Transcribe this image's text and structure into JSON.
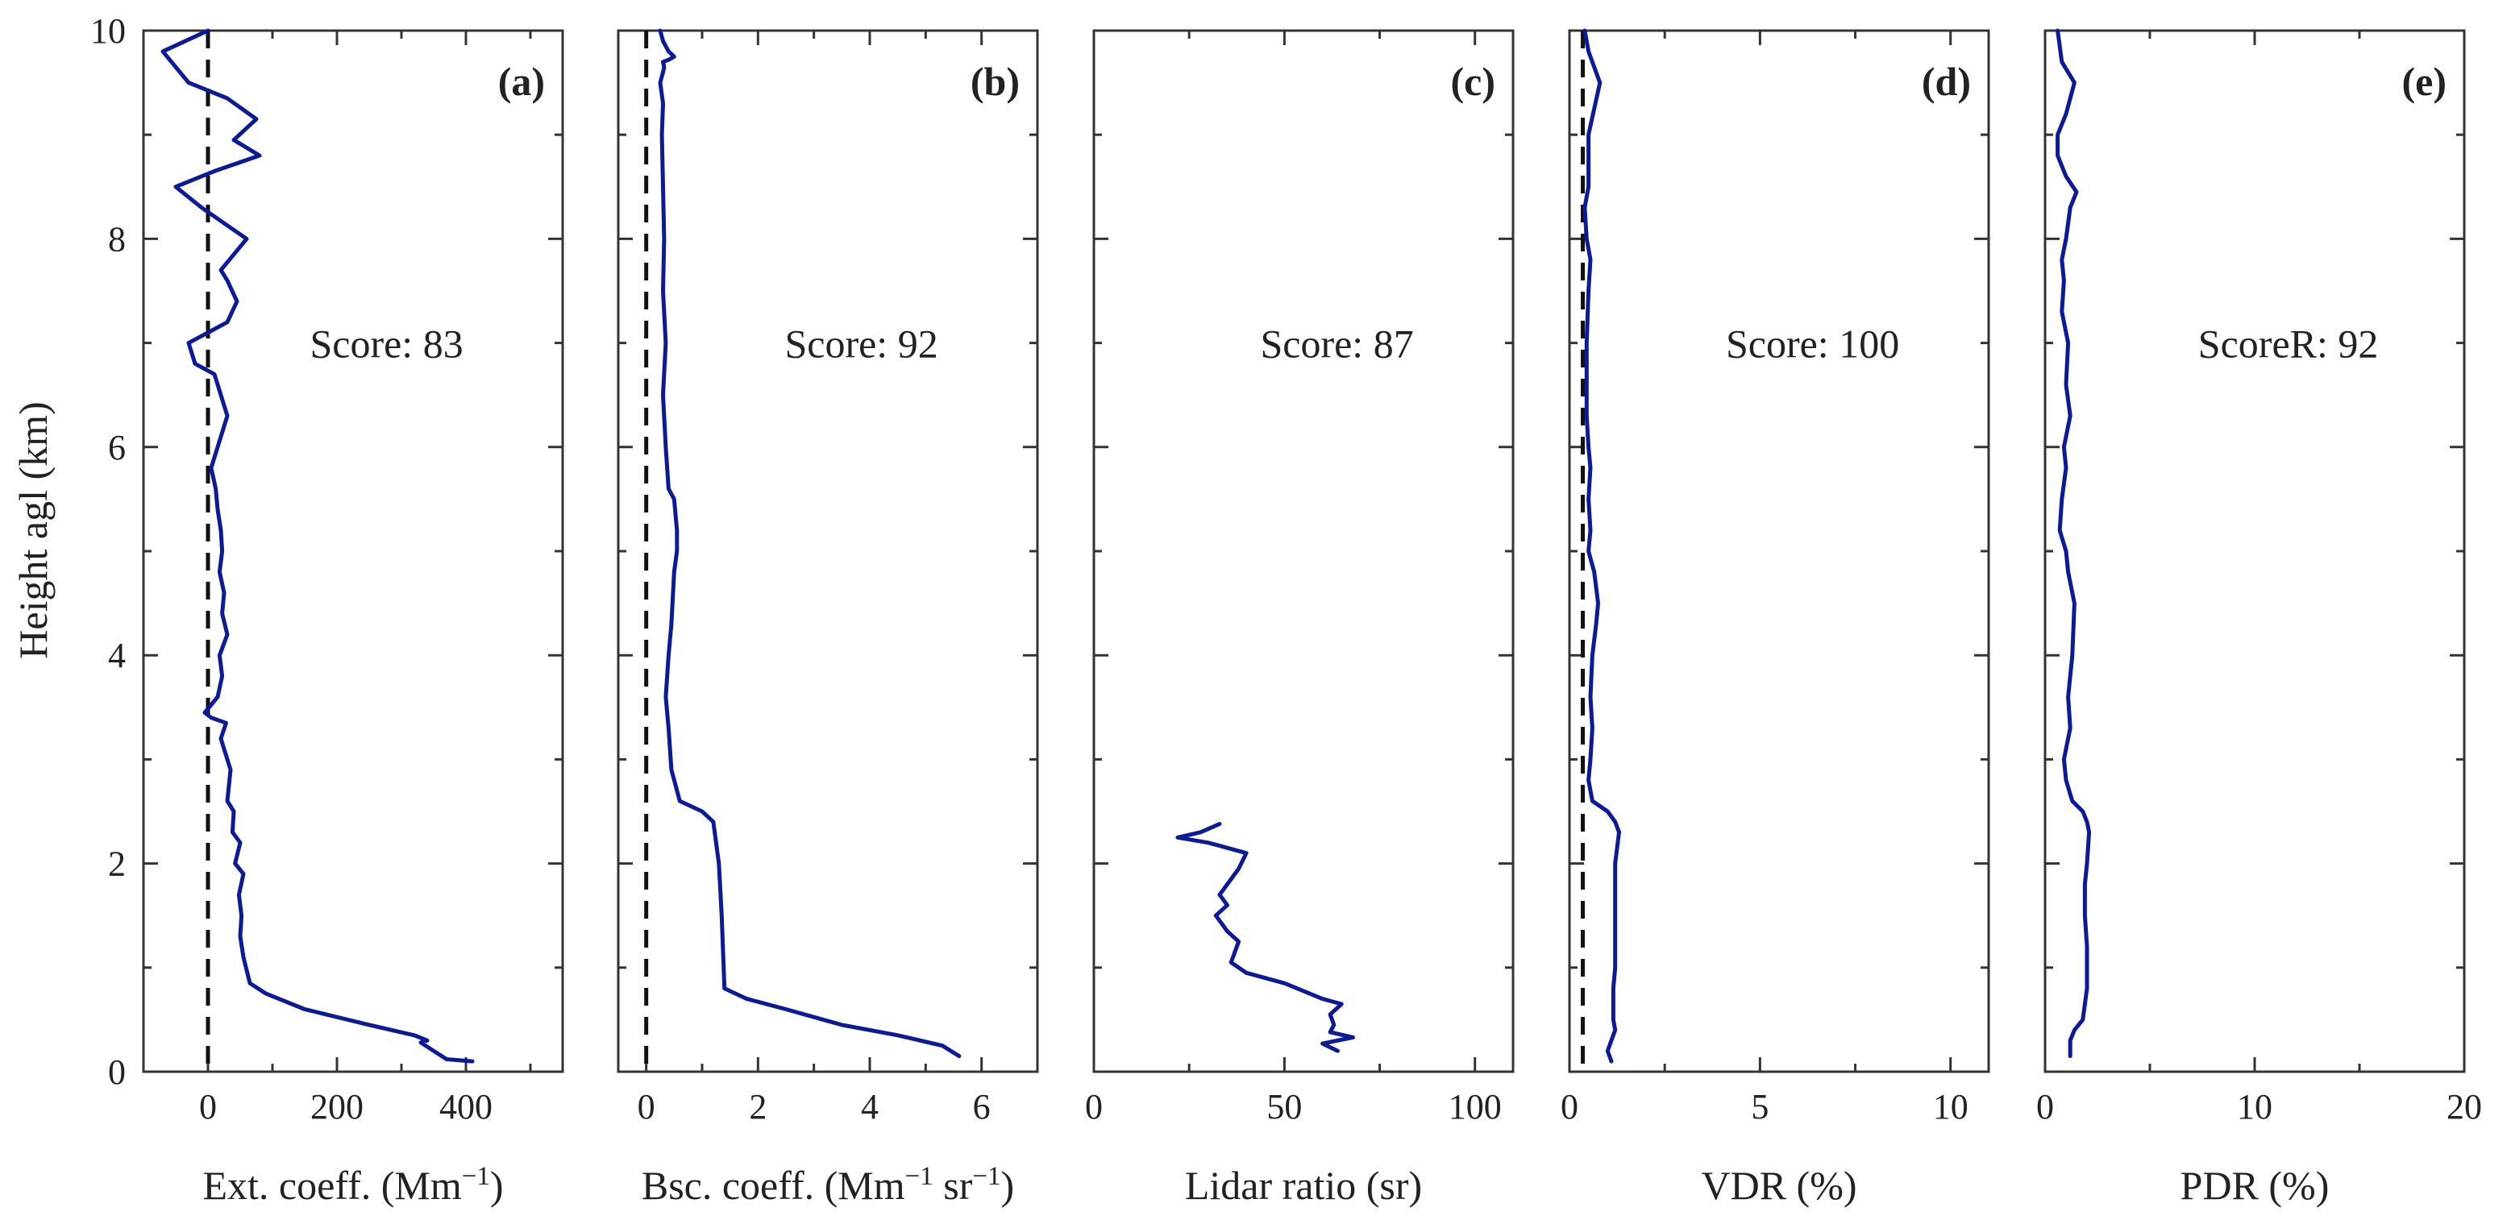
{
  "ylabel": "Height agl (km)",
  "ylim": [
    0,
    10
  ],
  "yticks": [
    0,
    2,
    4,
    6,
    8,
    10
  ],
  "colors": {
    "line": "#0d1a96",
    "reference": "#111111",
    "axes": "#333333"
  },
  "chart_data": [
    {
      "id": "a",
      "type": "line",
      "letter": "(a)",
      "score": "Score: 83",
      "xlabel": "Ext. coeff. (Mm",
      "xlabel_sup": "−1",
      "xlabel_tail": ")",
      "xlim": [
        -100,
        550
      ],
      "xticks": [
        0,
        200,
        400
      ],
      "xticklabels": [
        "0",
        "200",
        "400"
      ],
      "reference_x": 0,
      "series": [
        {
          "name": "Ext. coeff.",
          "x": [
            410,
            370,
            350,
            330,
            340,
            320,
            250,
            150,
            90,
            65,
            55,
            50,
            52,
            48,
            55,
            42,
            50,
            38,
            40,
            30,
            35,
            20,
            28,
            5,
            -5,
            15,
            22,
            18,
            30,
            22,
            25,
            18,
            22,
            20,
            15,
            12,
            5,
            15,
            30,
            20,
            10,
            -20,
            -30,
            30,
            45,
            30,
            20,
            40,
            60,
            -10,
            -50,
            10,
            80,
            40,
            75,
            30,
            -30,
            -70,
            0
          ],
          "y": [
            0.1,
            0.12,
            0.2,
            0.28,
            0.3,
            0.35,
            0.45,
            0.6,
            0.75,
            0.85,
            1.1,
            1.3,
            1.5,
            1.7,
            1.9,
            2.0,
            2.2,
            2.3,
            2.5,
            2.6,
            2.9,
            3.2,
            3.35,
            3.4,
            3.45,
            3.6,
            3.8,
            4.0,
            4.2,
            4.4,
            4.6,
            4.8,
            5.0,
            5.2,
            5.4,
            5.6,
            5.8,
            6.0,
            6.3,
            6.5,
            6.7,
            6.8,
            7.0,
            7.2,
            7.4,
            7.6,
            7.7,
            7.85,
            8.0,
            8.3,
            8.5,
            8.65,
            8.8,
            8.95,
            9.15,
            9.35,
            9.5,
            9.8,
            10.0
          ]
        }
      ]
    },
    {
      "id": "b",
      "type": "line",
      "letter": "(b)",
      "score": "Score: 92",
      "xlabel": "Bsc. coeff. (Mm",
      "xlabel_sup": "−1",
      "xlabel_mid": " sr",
      "xlabel_sup2": "−1",
      "xlabel_tail": ")",
      "xlim": [
        -0.5,
        7
      ],
      "xticks": [
        0,
        2,
        4,
        6
      ],
      "xticklabels": [
        "0",
        "2",
        "4",
        "6"
      ],
      "reference_x": 0,
      "series": [
        {
          "name": "Bsc. coeff.",
          "x": [
            5.6,
            5.3,
            4.5,
            3.5,
            2.5,
            1.8,
            1.4,
            1.35,
            1.3,
            1.2,
            1.0,
            0.6,
            0.45,
            0.4,
            0.35,
            0.4,
            0.45,
            0.5,
            0.55,
            0.55,
            0.5,
            0.4,
            0.35,
            0.3,
            0.35,
            0.3,
            0.32,
            0.3,
            0.28,
            0.3,
            0.25,
            0.3,
            0.32,
            0.3,
            0.4,
            0.5,
            0.4,
            0.3,
            0.25
          ],
          "y": [
            0.15,
            0.25,
            0.35,
            0.45,
            0.6,
            0.7,
            0.8,
            1.5,
            2.0,
            2.4,
            2.5,
            2.6,
            2.9,
            3.3,
            3.6,
            4.0,
            4.3,
            4.8,
            5.0,
            5.2,
            5.5,
            5.6,
            6.0,
            6.5,
            7.0,
            7.5,
            8.0,
            8.5,
            9.0,
            9.3,
            9.5,
            9.6,
            9.65,
            9.7,
            9.72,
            9.75,
            9.8,
            9.9,
            10.0
          ]
        }
      ]
    },
    {
      "id": "c",
      "type": "line",
      "letter": "(c)",
      "score": "Score: 87",
      "xlabel": "Lidar ratio (sr)",
      "xlim": [
        0,
        110
      ],
      "xticks": [
        0,
        50,
        100
      ],
      "xticklabels": [
        "0",
        "50",
        "100"
      ],
      "reference_x": null,
      "series": [
        {
          "name": "Lidar ratio",
          "x": [
            64,
            60,
            68,
            62,
            63,
            62,
            65,
            60,
            50,
            40,
            36,
            37,
            38,
            35,
            32,
            35,
            33,
            35,
            38,
            40,
            35,
            30,
            22,
            28,
            33
          ],
          "y": [
            0.2,
            0.27,
            0.33,
            0.38,
            0.45,
            0.55,
            0.65,
            0.7,
            0.85,
            0.95,
            1.05,
            1.15,
            1.25,
            1.35,
            1.5,
            1.6,
            1.7,
            1.8,
            1.95,
            2.1,
            2.15,
            2.2,
            2.25,
            2.3,
            2.38
          ]
        }
      ]
    },
    {
      "id": "d",
      "type": "line",
      "letter": "(d)",
      "score": "Score: 100",
      "xlabel": "VDR (%)",
      "xlim": [
        0,
        11
      ],
      "xticks": [
        0,
        5,
        10
      ],
      "xticklabels": [
        "0",
        "5",
        "10"
      ],
      "reference_x": 0.35,
      "series": [
        {
          "name": "VDR",
          "x": [
            1.1,
            1.0,
            1.1,
            1.2,
            1.15,
            1.15,
            1.2,
            1.2,
            1.2,
            1.3,
            1.2,
            1.0,
            0.6,
            0.5,
            0.55,
            0.6,
            0.55,
            0.6,
            0.7,
            0.75,
            0.65,
            0.5,
            0.55,
            0.5,
            0.55,
            0.5,
            0.45,
            0.45,
            0.45,
            0.5,
            0.55,
            0.45,
            0.4,
            0.5,
            0.5,
            0.8,
            0.5,
            0.4
          ],
          "y": [
            0.1,
            0.2,
            0.3,
            0.4,
            0.5,
            0.8,
            1.0,
            1.5,
            2.0,
            2.3,
            2.4,
            2.5,
            2.6,
            2.8,
            3.0,
            3.3,
            3.6,
            4.0,
            4.3,
            4.5,
            4.8,
            5.0,
            5.2,
            5.5,
            5.8,
            6.0,
            6.3,
            6.6,
            7.0,
            7.5,
            7.8,
            8.0,
            8.3,
            8.5,
            9.0,
            9.5,
            9.8,
            10.0
          ]
        }
      ]
    },
    {
      "id": "e",
      "type": "line",
      "letter": "(e)",
      "score": "ScoreR: 92",
      "xlabel": "PDR (%)",
      "xlim": [
        0,
        20
      ],
      "xticks": [
        0,
        10,
        20
      ],
      "xticklabels": [
        "0",
        "10",
        "20"
      ],
      "reference_x": null,
      "series": [
        {
          "name": "PDR",
          "x": [
            1.2,
            1.2,
            1.4,
            1.8,
            2.0,
            2.0,
            1.9,
            1.9,
            2.0,
            2.1,
            2.0,
            1.8,
            1.3,
            1.0,
            0.9,
            1.2,
            1.1,
            1.3,
            1.4,
            1.1,
            1.0,
            0.7,
            0.8,
            1.0,
            0.9,
            1.2,
            1.0,
            1.1,
            0.8,
            0.9,
            0.8,
            1.0,
            1.2,
            1.5,
            1.0,
            0.6,
            0.6,
            1.0,
            1.4,
            0.8,
            0.6
          ],
          "y": [
            0.15,
            0.3,
            0.4,
            0.5,
            0.8,
            1.2,
            1.5,
            1.8,
            2.0,
            2.3,
            2.4,
            2.5,
            2.6,
            2.8,
            3.0,
            3.3,
            3.6,
            4.0,
            4.5,
            4.8,
            5.0,
            5.2,
            5.5,
            5.8,
            6.0,
            6.3,
            6.6,
            7.0,
            7.3,
            7.6,
            7.8,
            8.0,
            8.3,
            8.45,
            8.6,
            8.8,
            9.0,
            9.2,
            9.5,
            9.7,
            10.0
          ]
        }
      ]
    }
  ]
}
